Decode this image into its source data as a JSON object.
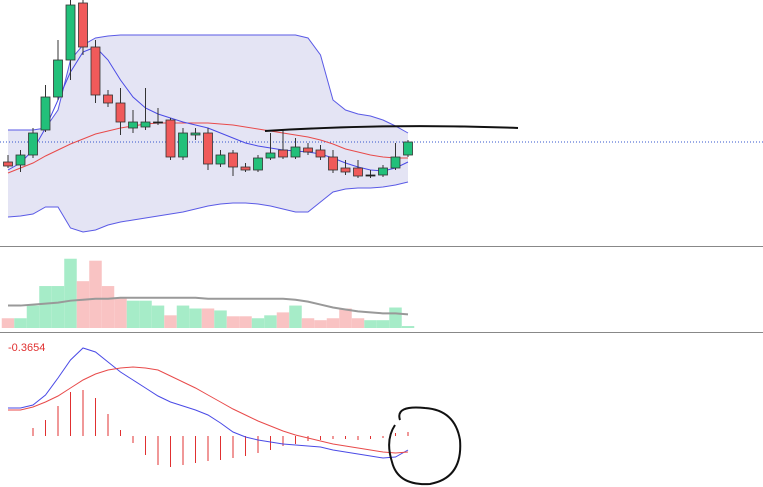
{
  "chart_data": [
    {
      "type": "candlestick",
      "categories": [
        null,
        null,
        null,
        null,
        null,
        null,
        null,
        null,
        null,
        null,
        null,
        null,
        null,
        null,
        null,
        null,
        null,
        null,
        null,
        null,
        null,
        null,
        null,
        null,
        null,
        null,
        null,
        null,
        null,
        null,
        null,
        null,
        null
      ],
      "open": [
        83,
        80,
        90,
        115,
        148,
        185,
        242,
        198,
        150,
        142,
        117,
        118,
        123,
        125,
        88,
        110,
        112,
        81,
        92,
        78,
        75,
        87,
        95,
        88,
        97,
        95,
        88,
        77,
        77,
        70,
        70,
        77,
        90
      ],
      "high": [
        90,
        95,
        117,
        160,
        205,
        245,
        245,
        205,
        155,
        157,
        135,
        157,
        137,
        127,
        117,
        117,
        117,
        95,
        95,
        82,
        90,
        112,
        115,
        107,
        102,
        100,
        95,
        85,
        85,
        75,
        80,
        102,
        105
      ],
      "low": [
        77,
        73,
        87,
        113,
        145,
        165,
        190,
        142,
        138,
        110,
        112,
        115,
        120,
        85,
        85,
        105,
        75,
        78,
        69,
        73,
        73,
        85,
        86,
        86,
        90,
        85,
        72,
        70,
        67,
        67,
        68,
        75,
        88
      ],
      "close": [
        79,
        90,
        112,
        148,
        185,
        240,
        198,
        150,
        142,
        123,
        123,
        123,
        123,
        88,
        112,
        112,
        81,
        90,
        78,
        75,
        87,
        92,
        88,
        98,
        93,
        88,
        75,
        73,
        69,
        70,
        77,
        88,
        103
      ],
      "up_color": "#22c07a",
      "down_color": "#f05a5a",
      "flat_color": "#222222",
      "ylim": [
        0,
        245
      ],
      "band": {
        "fill": "#e4e4f4",
        "color": "#5a5ae6",
        "upper": [
          115,
          115,
          115,
          117,
          135,
          185,
          200,
          207,
          209,
          210,
          210,
          210,
          210,
          210,
          210,
          210,
          210,
          210,
          210,
          210,
          210,
          210,
          210,
          210,
          207,
          190,
          145,
          135,
          131,
          129,
          125,
          119,
          112
        ],
        "lower": [
          28,
          29,
          31,
          38,
          38,
          17,
          13,
          15,
          20,
          23,
          25,
          27,
          29,
          31,
          33,
          36,
          39,
          41,
          42,
          42,
          41,
          39,
          36,
          33,
          33,
          43,
          53,
          56,
          57,
          57,
          58,
          60,
          63
        ]
      },
      "lines": [
        {
          "color": "#e84a4a",
          "values": [
            72,
            77,
            82,
            89,
            95,
            101,
            106,
            111,
            114,
            117,
            119,
            121,
            122,
            122,
            122,
            122,
            122,
            121,
            120,
            118,
            116,
            114,
            112,
            110,
            108,
            105,
            101,
            96,
            93,
            90,
            88,
            87,
            87
          ]
        },
        {
          "color": "#4a4ae6",
          "values": [
            75,
            82,
            95,
            117,
            145,
            173,
            193,
            198,
            185,
            165,
            148,
            137,
            131,
            127,
            123,
            120,
            117,
            112,
            107,
            102,
            99,
            97,
            95,
            94,
            93,
            91,
            87,
            82,
            78,
            75,
            74,
            77,
            83
          ]
        }
      ],
      "price_line": {
        "value": 103,
        "color": "#3355cc"
      }
    },
    {
      "type": "bar",
      "values": [
        10,
        10,
        23,
        43,
        43,
        71,
        48,
        69,
        43,
        31,
        28,
        28,
        23,
        13,
        23,
        20,
        20,
        18,
        12,
        12,
        10,
        13,
        16,
        23,
        10,
        8,
        10,
        20,
        10,
        8,
        8,
        21,
        2
      ],
      "up_color": "#a6ecc8",
      "down_color": "#f9c3c3",
      "ylim": [
        0,
        82
      ],
      "ma": {
        "color": "#999999",
        "values": [
          23,
          23,
          24,
          25,
          26,
          28,
          29,
          30,
          30,
          31,
          31,
          31,
          31,
          31,
          31,
          31,
          30,
          30,
          30,
          30,
          30,
          30,
          30,
          29,
          27,
          24,
          21,
          19,
          17,
          16,
          15,
          15,
          14
        ]
      }
    },
    {
      "type": "macd",
      "label": -0.3654,
      "label_color": "#e03030",
      "ylim": [
        -51,
        103
      ],
      "series": [
        {
          "color": "#4a4ae6",
          "values": [
            28,
            28,
            31,
            41,
            58,
            76,
            88,
            84,
            74,
            64,
            56,
            48,
            40,
            34,
            30,
            26,
            21,
            13,
            4,
            -1,
            -4,
            -6,
            -8,
            -9,
            -10,
            -11,
            -14,
            -16,
            -18,
            -20,
            -22,
            -21,
            -14
          ]
        },
        {
          "color": "#e84a4a",
          "values": [
            26,
            26,
            29,
            34,
            40,
            48,
            56,
            62,
            66,
            68,
            69,
            68,
            66,
            60,
            54,
            48,
            41,
            34,
            27,
            21,
            15,
            10,
            5,
            1,
            -2,
            -5,
            -8,
            -10,
            -12,
            -14,
            -16,
            -17,
            -16
          ]
        }
      ],
      "histogram": {
        "color": "#e03030",
        "values": [
          0,
          0,
          8,
          16,
          30,
          44,
          46,
          38,
          22,
          6,
          -7,
          -19,
          -29,
          -31,
          -29,
          -27,
          -25,
          -24,
          -22,
          -20,
          -17,
          -14,
          -10,
          -8,
          -5,
          -4,
          -3,
          -3,
          -4,
          -3,
          -2,
          3,
          4
        ]
      }
    }
  ]
}
